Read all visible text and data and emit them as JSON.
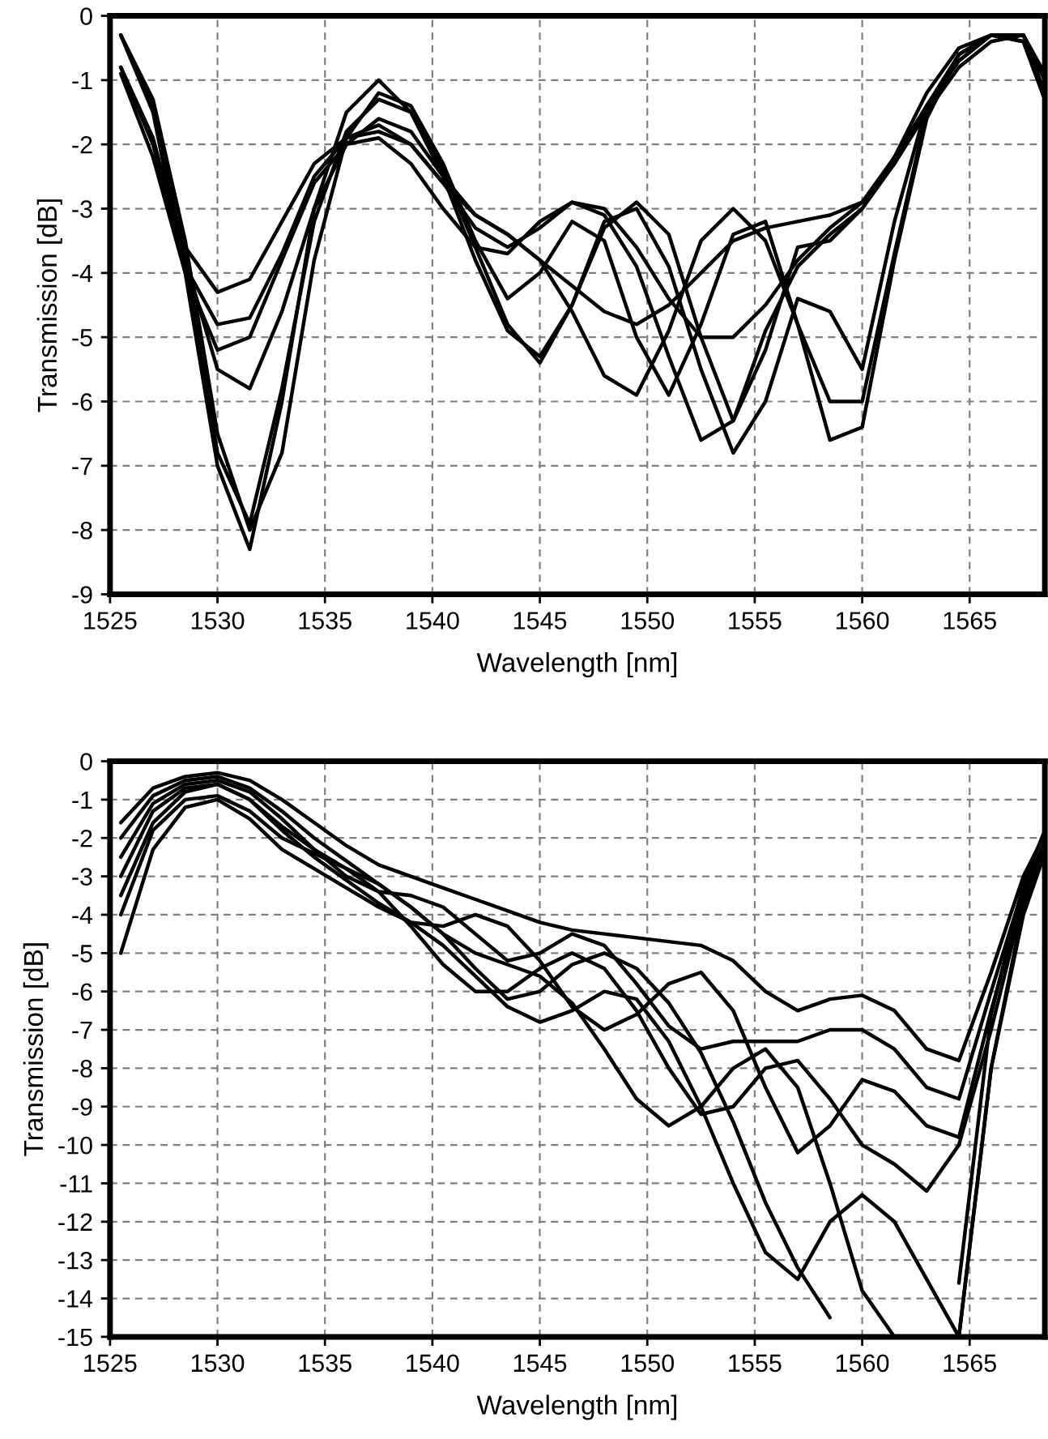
{
  "chart_data": [
    {
      "type": "line",
      "xlabel": "Wavelength [nm]",
      "ylabel": "Transmission [dB]",
      "x": [
        1525.5,
        1527,
        1528.5,
        1530,
        1531.5,
        1533,
        1534.5,
        1536,
        1537.5,
        1539,
        1540.5,
        1542,
        1543.5,
        1545,
        1546.5,
        1548,
        1549.5,
        1551,
        1552.5,
        1554,
        1555.5,
        1557,
        1558.5,
        1560,
        1561.5,
        1563,
        1564.5,
        1566,
        1567.5,
        1568.5
      ],
      "xlim": [
        1525,
        1568.5
      ],
      "xticks": [
        1525,
        1530,
        1535,
        1540,
        1545,
        1550,
        1555,
        1560,
        1565
      ],
      "ylim": [
        -9,
        0
      ],
      "yticks": [
        -9,
        -8,
        -7,
        -6,
        -5,
        -4,
        -3,
        -2,
        -1,
        0
      ],
      "grid": true,
      "line_style": "solid",
      "marker": "none",
      "series": [
        {
          "color": "#000000",
          "values": [
            -0.3,
            -1.5,
            -4.0,
            -7.0,
            -8.3,
            -6.0,
            -3.0,
            -1.5,
            -1.0,
            -1.5,
            -2.5,
            -3.8,
            -4.9,
            -5.3,
            -4.5,
            -3.3,
            -2.9,
            -3.4,
            -5.0,
            -6.3,
            -5.2,
            -3.6,
            -3.5,
            -3.0,
            -2.2,
            -1.2,
            -0.5,
            -0.3,
            -0.4,
            -1.3
          ]
        },
        {
          "color": "#000000",
          "values": [
            -0.8,
            -2.0,
            -3.6,
            -4.3,
            -4.1,
            -3.2,
            -2.3,
            -1.9,
            -1.8,
            -2.0,
            -2.6,
            -3.3,
            -3.6,
            -3.3,
            -2.9,
            -3.0,
            -3.6,
            -4.4,
            -5.0,
            -5.0,
            -4.5,
            -3.8,
            -3.3,
            -2.9,
            -2.2,
            -1.4,
            -0.7,
            -0.3,
            -0.3,
            -0.9
          ]
        },
        {
          "color": "#000000",
          "values": [
            -0.9,
            -2.2,
            -4.0,
            -5.2,
            -5.0,
            -3.8,
            -2.6,
            -2.0,
            -1.9,
            -2.3,
            -3.0,
            -3.6,
            -3.7,
            -3.2,
            -2.9,
            -3.1,
            -3.9,
            -5.3,
            -6.6,
            -6.3,
            -4.9,
            -3.9,
            -3.4,
            -3.0,
            -2.3,
            -1.5,
            -0.8,
            -0.4,
            -0.3,
            -1.0
          ]
        },
        {
          "color": "#000000",
          "values": [
            -0.3,
            -1.3,
            -3.5,
            -6.5,
            -8.0,
            -6.8,
            -3.8,
            -1.9,
            -1.2,
            -1.4,
            -2.3,
            -3.5,
            -4.4,
            -4.0,
            -3.2,
            -3.5,
            -5.0,
            -5.9,
            -4.8,
            -3.4,
            -3.2,
            -4.8,
            -6.6,
            -6.4,
            -3.8,
            -1.6,
            -0.6,
            -0.3,
            -0.3,
            -1.0
          ]
        },
        {
          "color": "#000000",
          "values": [
            -0.8,
            -1.9,
            -3.8,
            -5.5,
            -5.8,
            -4.6,
            -3.0,
            -2.0,
            -1.6,
            -1.8,
            -2.5,
            -3.1,
            -3.4,
            -3.8,
            -4.6,
            -5.6,
            -5.9,
            -4.9,
            -3.5,
            -3.0,
            -3.5,
            -4.8,
            -6.0,
            -6.0,
            -3.7,
            -1.5,
            -0.6,
            -0.3,
            -0.3,
            -1.2
          ]
        },
        {
          "color": "#000000",
          "values": [
            -0.8,
            -2.0,
            -3.9,
            -4.8,
            -4.7,
            -3.7,
            -2.5,
            -1.9,
            -1.7,
            -2.0,
            -2.6,
            -3.1,
            -3.4,
            -3.8,
            -4.2,
            -4.6,
            -4.8,
            -4.5,
            -4.0,
            -3.5,
            -3.3,
            -3.2,
            -3.1,
            -2.9,
            -2.3,
            -1.4,
            -0.7,
            -0.3,
            -0.3,
            -1.0
          ]
        },
        {
          "color": "#000000",
          "values": [
            -0.3,
            -1.4,
            -3.8,
            -6.8,
            -7.9,
            -5.8,
            -3.2,
            -1.8,
            -1.3,
            -1.5,
            -2.4,
            -3.6,
            -4.8,
            -5.4,
            -4.5,
            -3.2,
            -3.0,
            -3.9,
            -5.5,
            -6.8,
            -6.0,
            -4.4,
            -4.6,
            -5.5,
            -3.2,
            -1.4,
            -0.6,
            -0.3,
            -0.4,
            -1.3
          ]
        }
      ]
    },
    {
      "type": "line",
      "xlabel": "Wavelength [nm]",
      "ylabel": "Transmission [dB]",
      "x": [
        1525.5,
        1527,
        1528.5,
        1530,
        1531.5,
        1533,
        1534.5,
        1536,
        1537.5,
        1539,
        1540.5,
        1542,
        1543.5,
        1545,
        1546.5,
        1548,
        1549.5,
        1551,
        1552.5,
        1554,
        1555.5,
        1557,
        1558.5,
        1560,
        1561.5,
        1563,
        1564.5,
        1566,
        1567.5,
        1568.5
      ],
      "xlim": [
        1525,
        1568.5
      ],
      "xticks": [
        1525,
        1530,
        1535,
        1540,
        1545,
        1550,
        1555,
        1560,
        1565
      ],
      "ylim": [
        -15,
        0
      ],
      "yticks": [
        -15,
        -14,
        -13,
        -12,
        -11,
        -10,
        -9,
        -8,
        -7,
        -6,
        -5,
        -4,
        -3,
        -2,
        -1,
        0
      ],
      "grid": true,
      "line_style": "solid",
      "marker": "none",
      "series": [
        {
          "color": "#000000",
          "values": [
            -1.6,
            -0.7,
            -0.4,
            -0.3,
            -0.5,
            -1.0,
            -1.6,
            -2.2,
            -2.7,
            -3.0,
            -3.3,
            -3.6,
            -3.9,
            -4.2,
            -4.4,
            -4.5,
            -4.6,
            -4.7,
            -4.8,
            -5.2,
            -6.0,
            -6.5,
            -6.2,
            -6.1,
            -6.5,
            -7.5,
            -7.8,
            -5.5,
            -3.0,
            -1.9
          ]
        },
        {
          "color": "#000000",
          "values": [
            -2.5,
            -1.1,
            -0.6,
            -0.5,
            -0.8,
            -1.5,
            -2.3,
            -3.0,
            -3.4,
            -3.5,
            -3.8,
            -4.5,
            -5.2,
            -5.0,
            -4.5,
            -4.8,
            -5.8,
            -6.9,
            -7.5,
            -7.3,
            -7.3,
            -7.3,
            -7.0,
            -7.0,
            -7.5,
            -8.5,
            -8.8,
            -6.0,
            -3.3,
            -2.1
          ]
        },
        {
          "color": "#000000",
          "values": [
            -5.0,
            -2.3,
            -1.2,
            -1.0,
            -1.5,
            -2.3,
            -2.8,
            -3.3,
            -3.8,
            -4.2,
            -4.3,
            -4.0,
            -4.3,
            -5.2,
            -6.4,
            -7.0,
            -6.6,
            -5.8,
            -5.5,
            -6.5,
            -8.5,
            -10.2,
            -9.5,
            -8.3,
            -8.6,
            -9.5,
            -9.8,
            -6.5,
            -3.5,
            -2.2
          ]
        },
        {
          "color": "#000000",
          "values": [
            -3.5,
            -1.6,
            -0.8,
            -0.6,
            -1.0,
            -1.8,
            -2.5,
            -3.1,
            -3.7,
            -4.2,
            -4.8,
            -5.6,
            -6.4,
            -6.8,
            -6.5,
            -6.0,
            -6.2,
            -7.3,
            -9.0,
            -11.0,
            -12.8,
            -13.5,
            -12.0,
            -11.3,
            -12.0,
            -13.5,
            -15.0,
            -8.0,
            -4.0,
            -2.4
          ]
        },
        {
          "color": "#000000",
          "values": [
            -2.0,
            -0.9,
            -0.5,
            -0.4,
            -0.7,
            -1.3,
            -2.0,
            -2.6,
            -3.2,
            -3.8,
            -4.5,
            -5.0,
            -5.3,
            -5.6,
            -6.3,
            -7.5,
            -8.8,
            -9.5,
            -9.0,
            -8.0,
            -7.5,
            -8.5,
            -11.0,
            -13.8,
            -15.0,
            null,
            -15.0,
            -8.0,
            -3.8,
            -2.3
          ]
        },
        {
          "color": "#000000",
          "values": [
            -3.0,
            -1.3,
            -0.7,
            -0.6,
            -1.0,
            -1.7,
            -2.3,
            -2.8,
            -3.2,
            -3.8,
            -4.5,
            -5.4,
            -6.2,
            -6.0,
            -5.3,
            -5.0,
            -5.4,
            -6.3,
            -7.6,
            -9.4,
            -11.5,
            -13.2,
            -14.5,
            null,
            null,
            null,
            -13.6,
            -6.6,
            -3.2,
            -1.8
          ]
        },
        {
          "color": "#000000",
          "values": [
            -4.0,
            -1.8,
            -1.0,
            -0.9,
            -1.3,
            -2.0,
            -2.4,
            -2.8,
            -3.4,
            -4.3,
            -5.3,
            -6.0,
            -6.0,
            -5.4,
            -5.0,
            -5.4,
            -6.5,
            -8.0,
            -9.2,
            -9.0,
            -8.0,
            -7.8,
            -8.8,
            -10.0,
            -10.5,
            -11.2,
            -10.0,
            -7.0,
            -3.6,
            -2.2
          ]
        }
      ]
    }
  ]
}
